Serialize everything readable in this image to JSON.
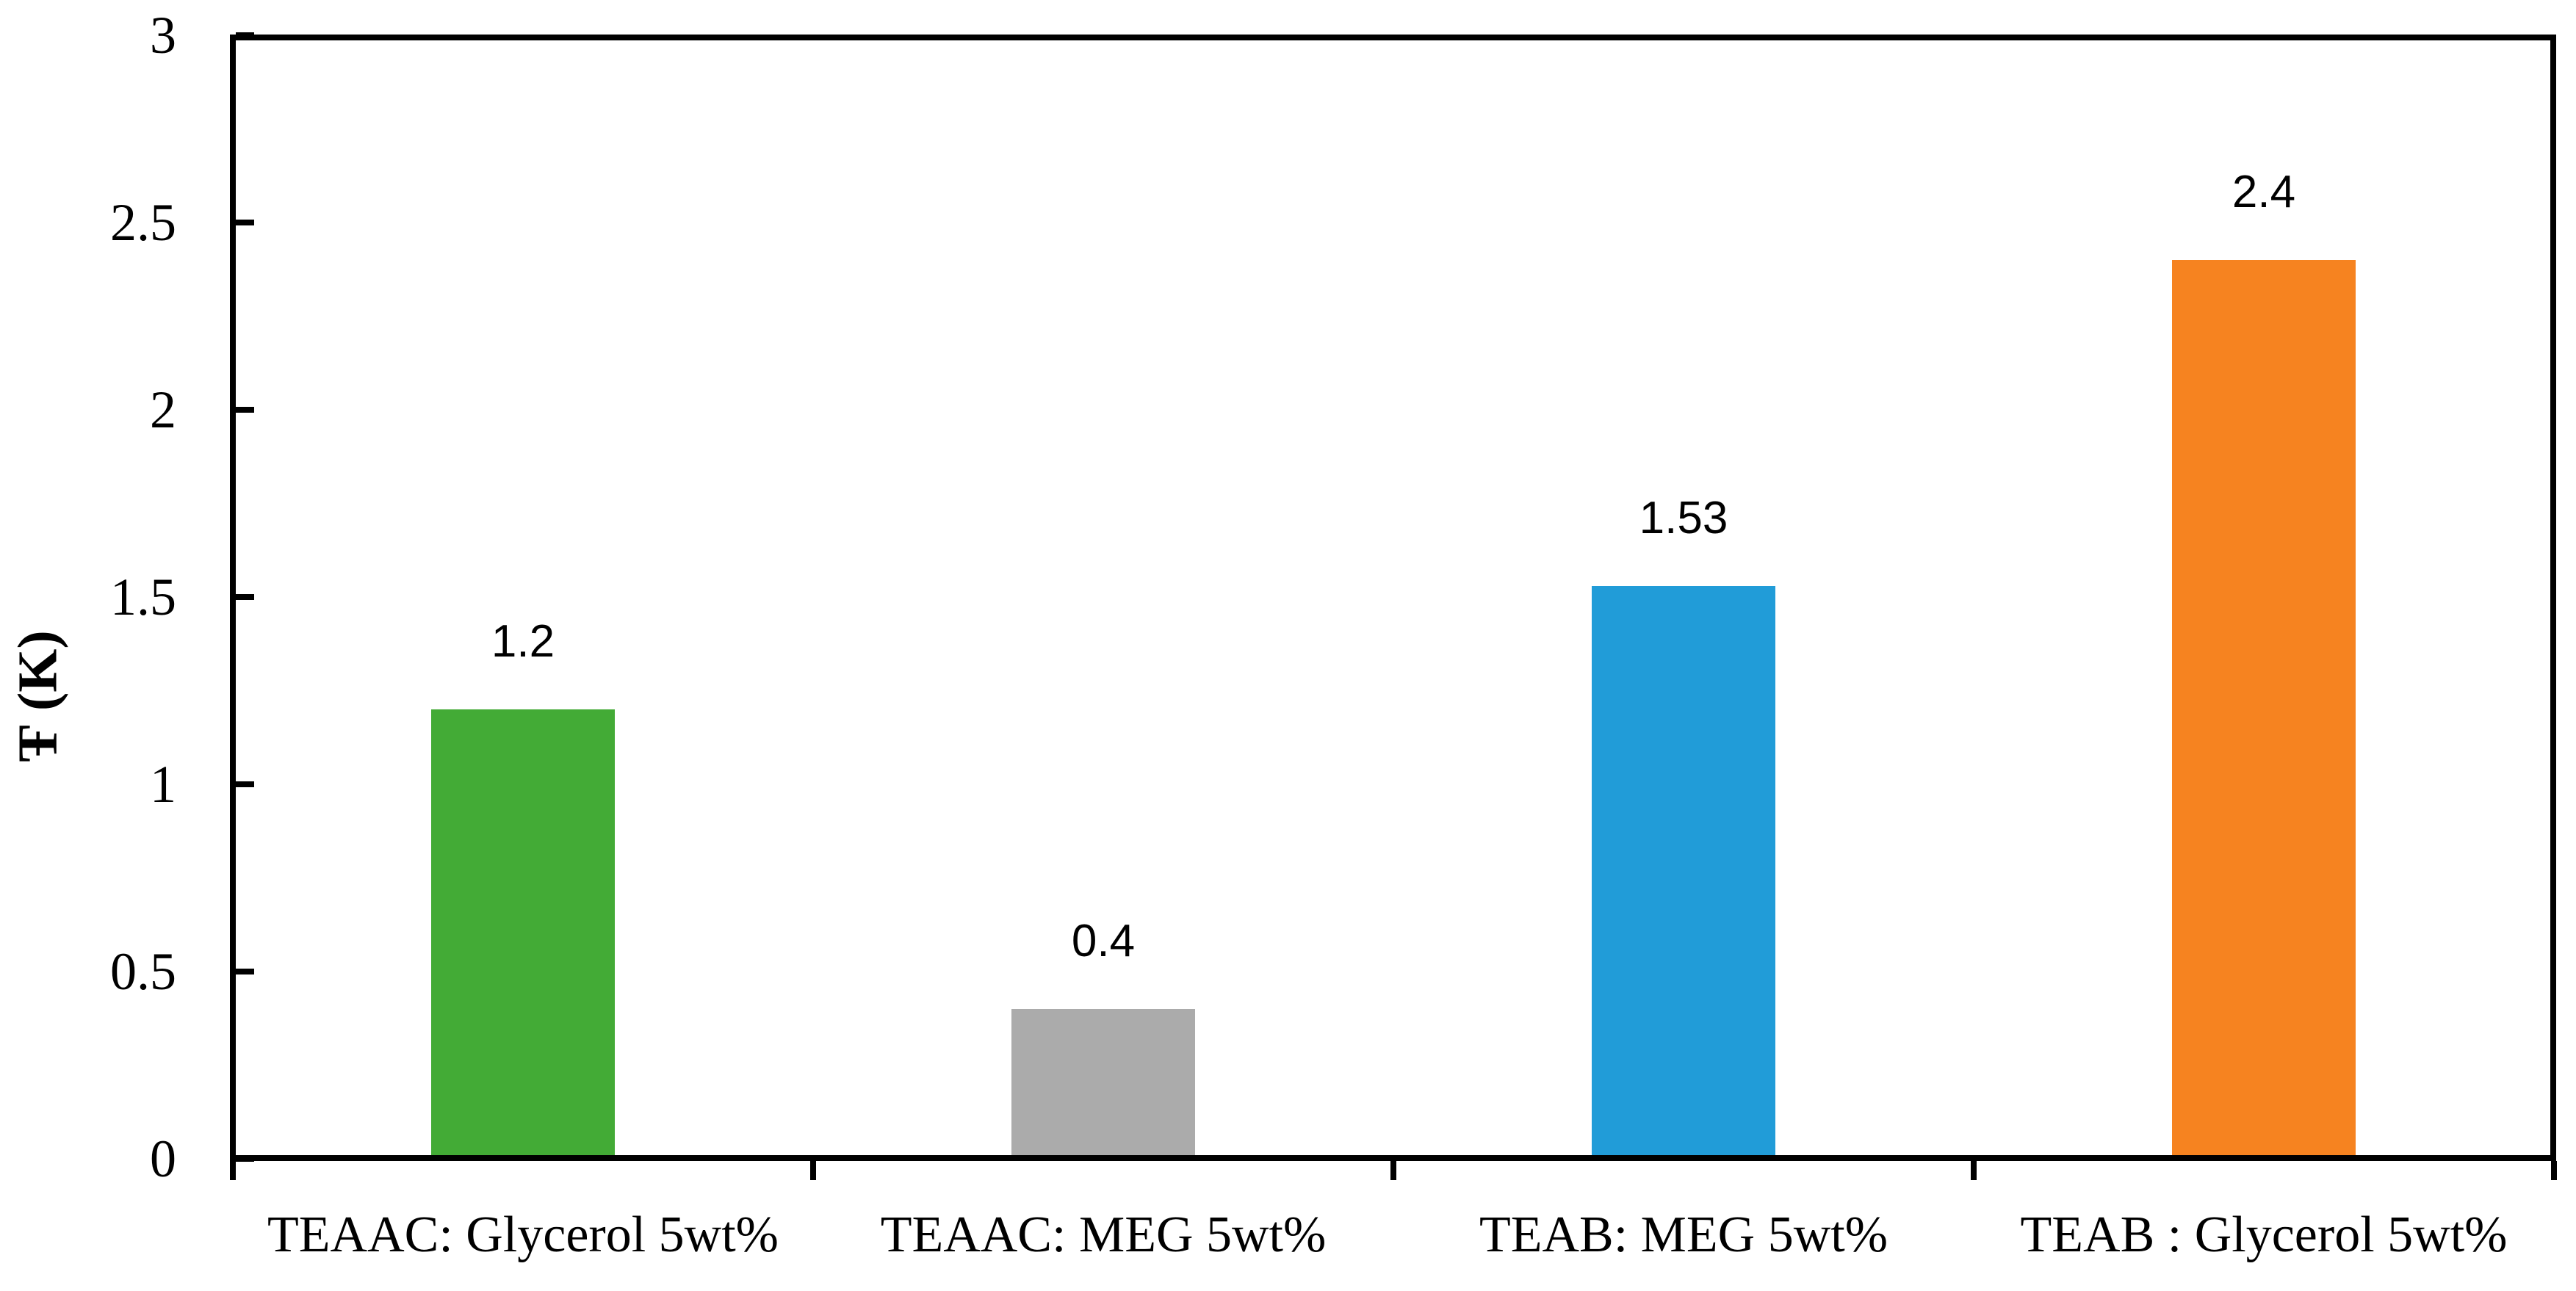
{
  "chart_data": {
    "type": "bar",
    "title": "",
    "xlabel": "",
    "ylabel": "Ŧ (K)",
    "categories": [
      "TEAAC: Glycerol 5wt%",
      "TEAAC: MEG 5wt%",
      "TEAB: MEG 5wt%",
      "TEAB : Glycerol 5wt%"
    ],
    "values": [
      1.2,
      0.4,
      1.53,
      2.4
    ],
    "value_labels": [
      "1.2",
      "0.4",
      "1.53",
      "2.4"
    ],
    "bar_colors": [
      "#43AB36",
      "#ABABAB",
      "#219CD8",
      "#F68320"
    ],
    "ylim": [
      0,
      3
    ],
    "ytick_interval": 0.5,
    "ytick_labels": [
      "0",
      "0.5",
      "1",
      "1.5",
      "2",
      "2.5",
      "3"
    ],
    "grid": false,
    "legend_position": "none",
    "axis_color": "#000000",
    "background_color": "#FFFFFF"
  }
}
